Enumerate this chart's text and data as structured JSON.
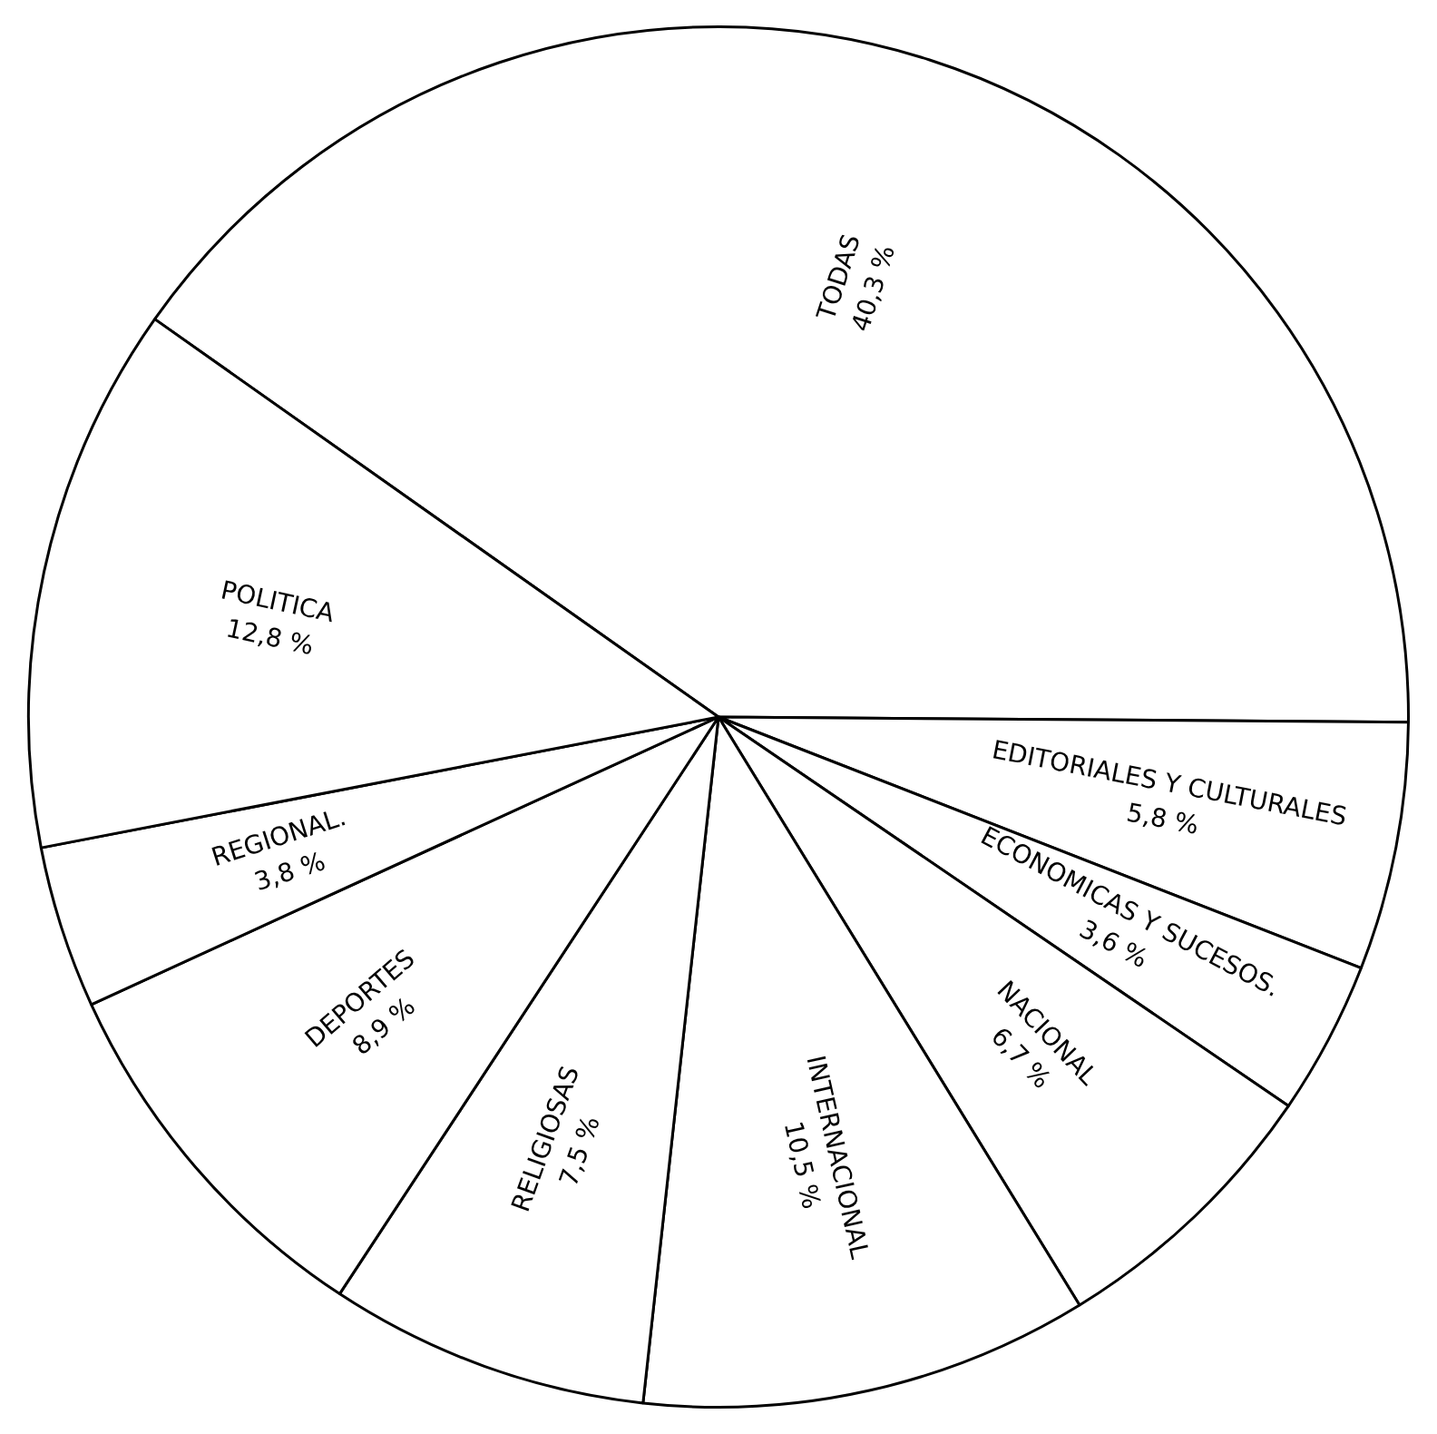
{
  "chart_data": {
    "type": "pie",
    "categories": [
      "TODAS",
      "EDITORIALES Y CULTURALES",
      "ECONOMICAS Y SUCESOS.",
      "NACIONAL",
      "INTERNACIONAL",
      "RELIGIOSAS",
      "DEPORTES",
      "REGIONAL.",
      "POLITICA"
    ],
    "values": [
      40.3,
      5.8,
      3.6,
      6.7,
      10.5,
      7.5,
      8.9,
      3.8,
      12.8
    ],
    "value_labels": [
      "40,3 %",
      "5,8 %",
      "3,6 %",
      "6,7 %",
      "10,5 %",
      "7,5 %",
      "8,9 %",
      "3,8 %",
      "12,8 %"
    ],
    "colors": [
      "#ffffff",
      "#ffffff",
      "#ffffff",
      "#ffffff",
      "#ffffff",
      "#ffffff",
      "#ffffff",
      "#ffffff",
      "#ffffff"
    ],
    "legend": false
  }
}
